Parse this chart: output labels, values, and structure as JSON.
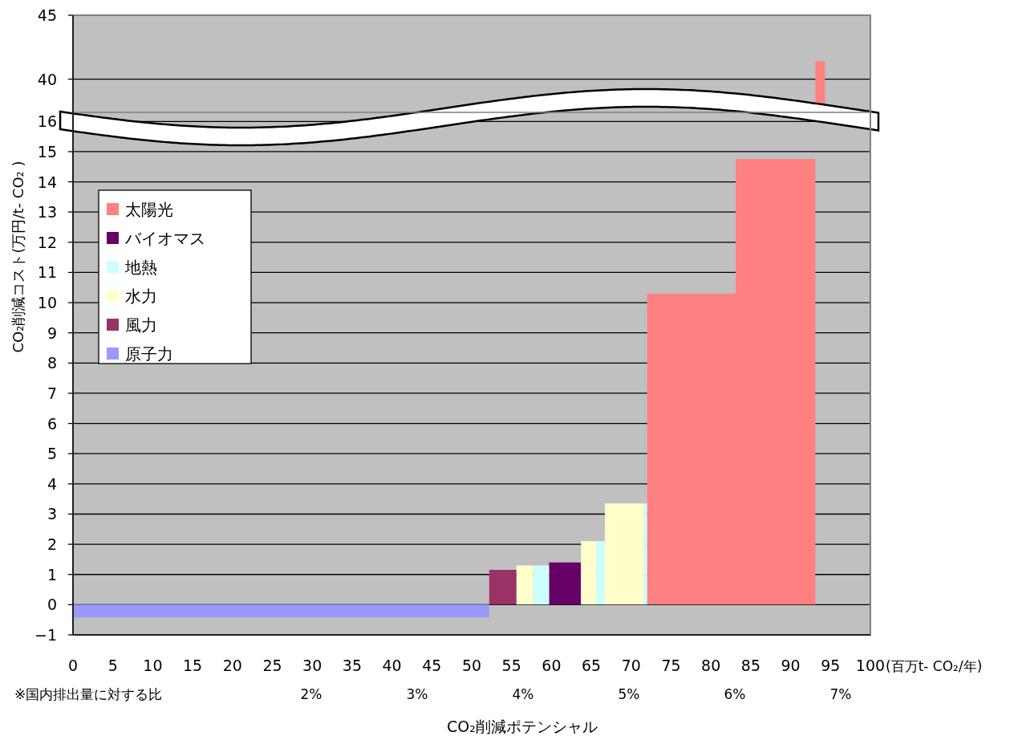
{
  "chart_data": [
    {
      "type": "area",
      "xlim": [
        0,
        100
      ],
      "ylim": [
        37.4,
        45
      ],
      "yticks": [
        40,
        45
      ],
      "grid": "y",
      "tick_labels": "y",
      "series": [
        {
          "color": "#ff8080",
          "x": [
            93.1,
            94.3
          ],
          "values": [
            41.4,
            41.4
          ]
        }
      ]
    },
    {
      "type": "area",
      "xlabel": "CO₂削減ポテンシャル",
      "ylabel": "CO₂削減コスト(万円/t- CO₂ )",
      "x2label": "※国内排出量に対する比",
      "annotations": [
        "(百万t- CO₂/年)"
      ],
      "xlim": [
        0,
        100
      ],
      "xticks": [
        0,
        5,
        10,
        15,
        20,
        25,
        30,
        35,
        40,
        45,
        50,
        55,
        60,
        65,
        70,
        75,
        80,
        85,
        90,
        95,
        100
      ],
      "x2lim": [
        -0.25,
        7.28
      ],
      "x2ticks": [
        {
          "value": 2,
          "label": "2%"
        },
        {
          "value": 3,
          "label": "3%"
        },
        {
          "value": 4,
          "label": "4%"
        },
        {
          "value": 5,
          "label": "5%"
        },
        {
          "value": 6,
          "label": "6%"
        },
        {
          "value": 7,
          "label": "7%"
        }
      ],
      "ylim": [
        -1,
        16.3
      ],
      "yticks": [
        {
          "value": -1,
          "label": "−1"
        },
        0,
        1,
        2,
        3,
        4,
        5,
        6,
        7,
        8,
        9,
        10,
        11,
        12,
        13,
        14,
        15,
        16
      ],
      "grid": "y",
      "legend": "top left",
      "series": [
        {
          "name": "太陽光",
          "color": "#ff8080",
          "x": [
            72.0,
            83.1,
            83.1,
            93.1
          ],
          "values": [
            10.3,
            10.3,
            14.75,
            14.75
          ]
        },
        {
          "name": "バイオマス",
          "color": "#660066",
          "x": [
            59.7,
            63.7
          ],
          "values": [
            1.4,
            1.4
          ]
        },
        {
          "name": "地熱",
          "color": "#ccffff",
          "x": [
            57.7,
            59.7,
            59.7,
            65.6,
            65.6,
            66.7,
            66.7,
            71.6,
            71.6,
            72.0
          ],
          "values": [
            1.3,
            1.3,
            0,
            0,
            2.1,
            2.1,
            0,
            0,
            3.35,
            3.35
          ]
        },
        {
          "name": "水力",
          "color": "#ffffcc",
          "x": [
            55.6,
            57.7,
            57.7,
            63.7,
            63.7,
            65.6,
            65.6,
            66.7,
            66.7,
            71.6
          ],
          "values": [
            1.3,
            1.3,
            0,
            0,
            2.1,
            2.1,
            0,
            0,
            3.35,
            3.35
          ]
        },
        {
          "name": "風力",
          "color": "#993366",
          "x": [
            52.2,
            55.6
          ],
          "values": [
            1.15,
            1.15
          ]
        },
        {
          "name": "原子力",
          "color": "#9999ff",
          "x": [
            0,
            52.2
          ],
          "values": [
            -0.42,
            -0.42
          ]
        }
      ]
    }
  ]
}
